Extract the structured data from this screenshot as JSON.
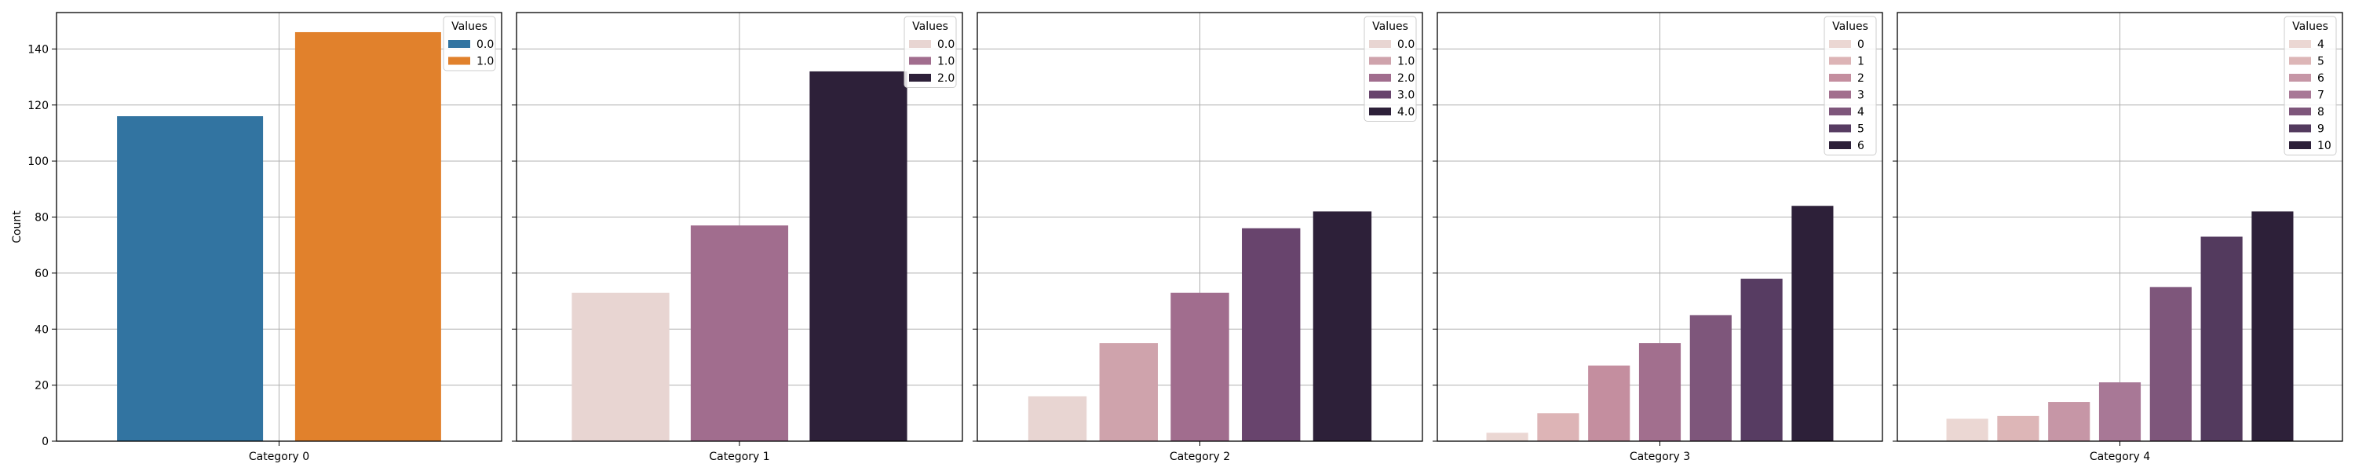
{
  "chart_data": [
    {
      "type": "bar",
      "xlabel": "",
      "ylabel": "Count",
      "category": "Category 0",
      "ylim": [
        0,
        153
      ],
      "yticks": [
        0,
        20,
        40,
        60,
        80,
        100,
        120,
        140
      ],
      "grid": true,
      "legend": {
        "title": "Values",
        "placement": "top-right"
      },
      "series": [
        {
          "name": "0.0",
          "value": 116,
          "color": "#3274a1"
        },
        {
          "name": "1.0",
          "value": 146,
          "color": "#e1812c"
        }
      ]
    },
    {
      "type": "bar",
      "xlabel": "",
      "ylabel": "",
      "category": "Category 1",
      "ylim": [
        0,
        153
      ],
      "grid": true,
      "legend": {
        "title": "Values",
        "placement": "top-right"
      },
      "series": [
        {
          "name": "0.0",
          "value": 53,
          "color": "#e8d5d2"
        },
        {
          "name": "1.0",
          "value": 77,
          "color": "#a16d8e"
        },
        {
          "name": "2.0",
          "value": 132,
          "color": "#2d2039"
        }
      ]
    },
    {
      "type": "bar",
      "xlabel": "",
      "ylabel": "",
      "category": "Category 2",
      "ylim": [
        0,
        153
      ],
      "grid": true,
      "legend": {
        "title": "Values",
        "placement": "top-right"
      },
      "series": [
        {
          "name": "0.0",
          "value": 16,
          "color": "#e8d5d2"
        },
        {
          "name": "1.0",
          "value": 35,
          "color": "#cfa3ac"
        },
        {
          "name": "2.0",
          "value": 53,
          "color": "#a16d8e"
        },
        {
          "name": "3.0",
          "value": 76,
          "color": "#68446d"
        },
        {
          "name": "4.0",
          "value": 82,
          "color": "#2d2039"
        }
      ]
    },
    {
      "type": "bar",
      "xlabel": "",
      "ylabel": "",
      "category": "Category 3",
      "ylim": [
        0,
        153
      ],
      "grid": true,
      "legend": {
        "title": "Values",
        "placement": "top-right"
      },
      "series": [
        {
          "name": "0",
          "value": 3,
          "color": "#ebd7d3"
        },
        {
          "name": "1",
          "value": 10,
          "color": "#ddb4b6"
        },
        {
          "name": "2",
          "value": 27,
          "color": "#c48e9f"
        },
        {
          "name": "3",
          "value": 35,
          "color": "#a26f8e"
        },
        {
          "name": "4",
          "value": 45,
          "color": "#7e567b"
        },
        {
          "name": "5",
          "value": 58,
          "color": "#573c62"
        },
        {
          "name": "6",
          "value": 84,
          "color": "#2d2039"
        }
      ]
    },
    {
      "type": "bar",
      "xlabel": "",
      "ylabel": "",
      "category": "Category 4",
      "ylim": [
        0,
        153
      ],
      "grid": true,
      "legend": {
        "title": "Values",
        "placement": "top-right"
      },
      "series": [
        {
          "name": "4",
          "value": 8,
          "color": "#ebd7d3"
        },
        {
          "name": "5",
          "value": 9,
          "color": "#ddb6b7"
        },
        {
          "name": "6",
          "value": 14,
          "color": "#c696a6"
        },
        {
          "name": "7",
          "value": 21,
          "color": "#a87896"
        },
        {
          "name": "8",
          "value": 55,
          "color": "#7e567b"
        },
        {
          "name": "9",
          "value": 73,
          "color": "#533a5e"
        },
        {
          "name": "10",
          "value": 82,
          "color": "#2d2039"
        }
      ]
    }
  ]
}
